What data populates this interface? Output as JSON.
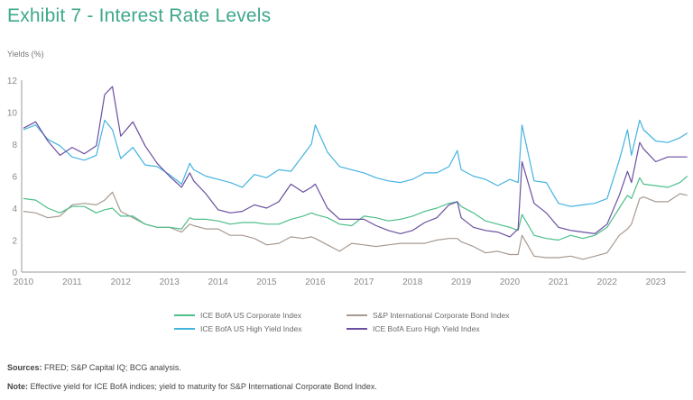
{
  "header": {
    "title": "Exhibit 7 - Interest Rate Levels",
    "y_axis_label": "Yields (%)"
  },
  "footer": {
    "sources_label": "Sources:",
    "sources_text": " FRED; S&P Capital IQ; BCG analysis.",
    "note_label": "Note:",
    "note_text": " Effective yield for ICE BofA indices; yield to maturity for S&P International Corporate Bond Index."
  },
  "chart_data": {
    "type": "line",
    "title": "Exhibit 7 - Interest Rate Levels",
    "xlabel": "",
    "ylabel": "Yields (%)",
    "xlim": [
      2010,
      2023.65
    ],
    "ylim": [
      0,
      12
    ],
    "x_ticks": [
      "2010",
      "2011",
      "2012",
      "2013",
      "2014",
      "2015",
      "2016",
      "2017",
      "2018",
      "2019",
      "2020",
      "2021",
      "2022",
      "2023"
    ],
    "y_ticks": [
      "0",
      "2",
      "4",
      "6",
      "8",
      "10",
      "12"
    ],
    "grid": false,
    "legend_position": "bottom",
    "x": [
      2010.0,
      2010.25,
      2010.5,
      2010.75,
      2011.0,
      2011.25,
      2011.5,
      2011.67,
      2011.83,
      2012.0,
      2012.25,
      2012.5,
      2012.75,
      2013.0,
      2013.25,
      2013.42,
      2013.5,
      2013.75,
      2014.0,
      2014.25,
      2014.5,
      2014.75,
      2015.0,
      2015.25,
      2015.5,
      2015.75,
      2015.92,
      2016.0,
      2016.25,
      2016.5,
      2016.75,
      2017.0,
      2017.25,
      2017.5,
      2017.75,
      2018.0,
      2018.25,
      2018.5,
      2018.75,
      2018.92,
      2019.0,
      2019.25,
      2019.5,
      2019.75,
      2020.0,
      2020.17,
      2020.25,
      2020.5,
      2020.75,
      2021.0,
      2021.25,
      2021.5,
      2021.75,
      2022.0,
      2022.25,
      2022.42,
      2022.5,
      2022.67,
      2022.75,
      2023.0,
      2023.25,
      2023.5,
      2023.65
    ],
    "series": [
      {
        "name": "ICE BofA US Corporate Index",
        "color": "#4dbf8a",
        "values": [
          4.6,
          4.5,
          4.0,
          3.7,
          4.1,
          4.1,
          3.7,
          3.9,
          4.0,
          3.5,
          3.5,
          3.0,
          2.8,
          2.8,
          2.7,
          3.4,
          3.3,
          3.3,
          3.2,
          3.0,
          3.1,
          3.1,
          3.0,
          3.0,
          3.3,
          3.5,
          3.7,
          3.6,
          3.4,
          3.0,
          2.9,
          3.5,
          3.4,
          3.2,
          3.3,
          3.5,
          3.8,
          4.0,
          4.3,
          4.4,
          4.1,
          3.7,
          3.2,
          3.0,
          2.8,
          2.6,
          3.6,
          2.3,
          2.1,
          2.0,
          2.3,
          2.1,
          2.3,
          2.8,
          4.0,
          4.8,
          4.6,
          5.9,
          5.5,
          5.4,
          5.3,
          5.6,
          6.0
        ]
      },
      {
        "name": "S&P International Corporate Bond Index",
        "color": "#a89a91",
        "values": [
          3.8,
          3.7,
          3.4,
          3.5,
          4.2,
          4.3,
          4.2,
          4.5,
          5.0,
          3.8,
          3.4,
          3.0,
          2.8,
          2.8,
          2.5,
          3.0,
          2.9,
          2.7,
          2.7,
          2.3,
          2.3,
          2.1,
          1.7,
          1.8,
          2.2,
          2.1,
          2.2,
          2.1,
          1.7,
          1.3,
          1.8,
          1.7,
          1.6,
          1.7,
          1.8,
          1.8,
          1.8,
          2.0,
          2.1,
          2.1,
          1.9,
          1.6,
          1.2,
          1.3,
          1.1,
          1.1,
          2.3,
          1.0,
          0.9,
          0.9,
          1.0,
          0.8,
          1.0,
          1.2,
          2.3,
          2.7,
          3.0,
          4.6,
          4.7,
          4.4,
          4.4,
          4.9,
          4.8
        ]
      },
      {
        "name": "ICE BofA US High Yield Index",
        "color": "#44b3e0",
        "values": [
          8.9,
          9.2,
          8.3,
          7.9,
          7.2,
          7.0,
          7.3,
          9.5,
          8.9,
          7.1,
          7.8,
          6.7,
          6.6,
          6.1,
          5.5,
          6.8,
          6.4,
          6.0,
          5.8,
          5.6,
          5.3,
          6.1,
          5.9,
          6.4,
          6.3,
          7.3,
          8.0,
          9.2,
          7.5,
          6.6,
          6.4,
          6.2,
          5.9,
          5.7,
          5.6,
          5.8,
          6.2,
          6.2,
          6.6,
          7.6,
          6.4,
          6.0,
          5.8,
          5.4,
          5.8,
          5.6,
          9.2,
          5.7,
          5.6,
          4.3,
          4.1,
          4.2,
          4.3,
          4.6,
          7.0,
          8.9,
          7.3,
          9.5,
          8.9,
          8.2,
          8.1,
          8.4,
          8.7
        ]
      },
      {
        "name": "ICE BofA Euro High Yield Index",
        "color": "#6a4fa0",
        "values": [
          9.0,
          9.4,
          8.2,
          7.3,
          7.8,
          7.4,
          7.9,
          11.1,
          11.6,
          8.5,
          9.4,
          7.9,
          6.8,
          6.0,
          5.3,
          6.2,
          5.7,
          4.9,
          3.9,
          3.7,
          3.8,
          4.2,
          4.0,
          4.4,
          5.5,
          5.0,
          5.3,
          5.5,
          4.0,
          3.3,
          3.3,
          3.3,
          2.9,
          2.6,
          2.4,
          2.6,
          3.1,
          3.4,
          4.2,
          4.4,
          3.4,
          2.8,
          2.6,
          2.5,
          2.2,
          2.7,
          6.9,
          4.3,
          3.7,
          2.8,
          2.6,
          2.5,
          2.4,
          3.0,
          4.8,
          6.3,
          5.6,
          8.1,
          7.7,
          6.9,
          7.2,
          7.2,
          7.2
        ]
      }
    ]
  },
  "legend": {
    "items": [
      {
        "label": "ICE BofA US Corporate Index"
      },
      {
        "label": "S&P International Corporate Bond Index"
      },
      {
        "label": "ICE BofA US High Yield Index"
      },
      {
        "label": "ICE BofA Euro High Yield Index"
      }
    ]
  }
}
